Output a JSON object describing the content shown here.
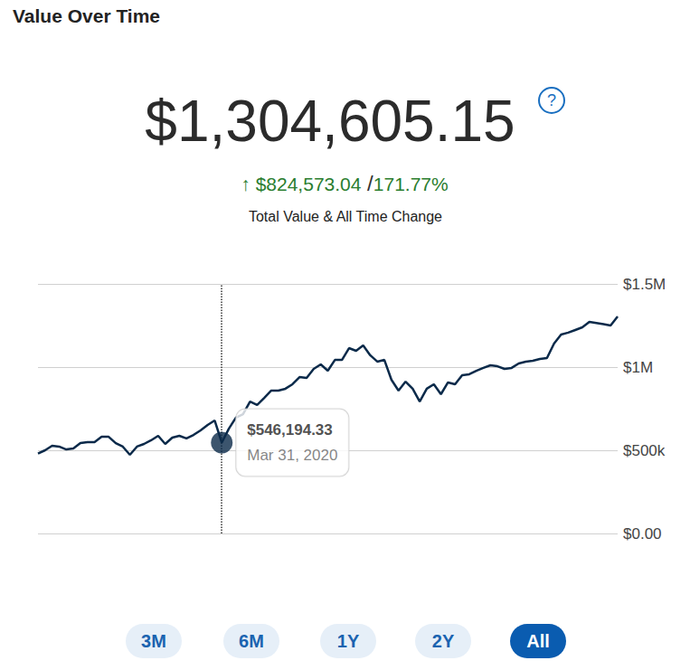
{
  "header": {
    "title": "Value Over Time",
    "total": "$1,304,605.15",
    "help_icon": "?",
    "change": "↑ $824,573.04",
    "separator": "/",
    "change_percent": "171.77%",
    "subtitle": "Total Value & All Time Change"
  },
  "chart_data": {
    "type": "line",
    "categories": [
      null,
      null,
      null,
      null,
      null,
      null,
      null,
      null,
      null,
      null,
      null,
      null,
      null,
      null,
      null,
      null,
      null,
      null,
      null,
      null,
      null,
      null,
      null,
      null,
      null,
      null,
      "Mar 31, 2020",
      null,
      null,
      null,
      null,
      null,
      null,
      null,
      null,
      null,
      null,
      null,
      null,
      null,
      null,
      null,
      null,
      null,
      null,
      null,
      null,
      null,
      null,
      null,
      null,
      null,
      null,
      null,
      null,
      null,
      null,
      null,
      null,
      null,
      null,
      null,
      null,
      null,
      null,
      null,
      null,
      null,
      null,
      null,
      null,
      null,
      null,
      null,
      null,
      null,
      null,
      null,
      null,
      null,
      null,
      null,
      null
    ],
    "values": [
      480032.11,
      500000,
      527000,
      522000,
      505000,
      511000,
      543000,
      549000,
      549000,
      582000,
      581000,
      543000,
      522000,
      473000,
      522000,
      538000,
      560000,
      587000,
      538000,
      576000,
      587000,
      571000,
      592000,
      620000,
      652000,
      679000,
      546194.33,
      630000,
      696000,
      717000,
      793000,
      772000,
      815000,
      859000,
      859000,
      870000,
      897000,
      940000,
      935000,
      989000,
      1016000,
      978000,
      1043000,
      1043000,
      1114000,
      1098000,
      1130000,
      1071000,
      1033000,
      1043000,
      924000,
      859000,
      913000,
      870000,
      793000,
      870000,
      897000,
      837000,
      908000,
      897000,
      951000,
      957000,
      978000,
      995000,
      1011000,
      1005000,
      989000,
      995000,
      1022000,
      1033000,
      1038000,
      1049000,
      1054000,
      1141000,
      1196000,
      1207000,
      1223000,
      1239000,
      1272000,
      1265000,
      1258000,
      1250000,
      1304605.15
    ],
    "color": "#0b2a4a",
    "ylim": [
      0,
      1500000
    ],
    "yticks": [
      {
        "value": 0,
        "label": "$0.00"
      },
      {
        "value": 500000,
        "label": "$500k"
      },
      {
        "value": 1000000,
        "label": "$1M"
      },
      {
        "value": 1500000,
        "label": "$1.5M"
      }
    ],
    "grid": true,
    "tick_labels": "y",
    "annotation": {
      "x": "Mar 31, 2020",
      "value": 546194.33,
      "value_label": "$546,194.33"
    }
  },
  "range_buttons": {
    "options": [
      "3M",
      "6M",
      "1Y",
      "2Y",
      "All"
    ],
    "selected": "All"
  }
}
